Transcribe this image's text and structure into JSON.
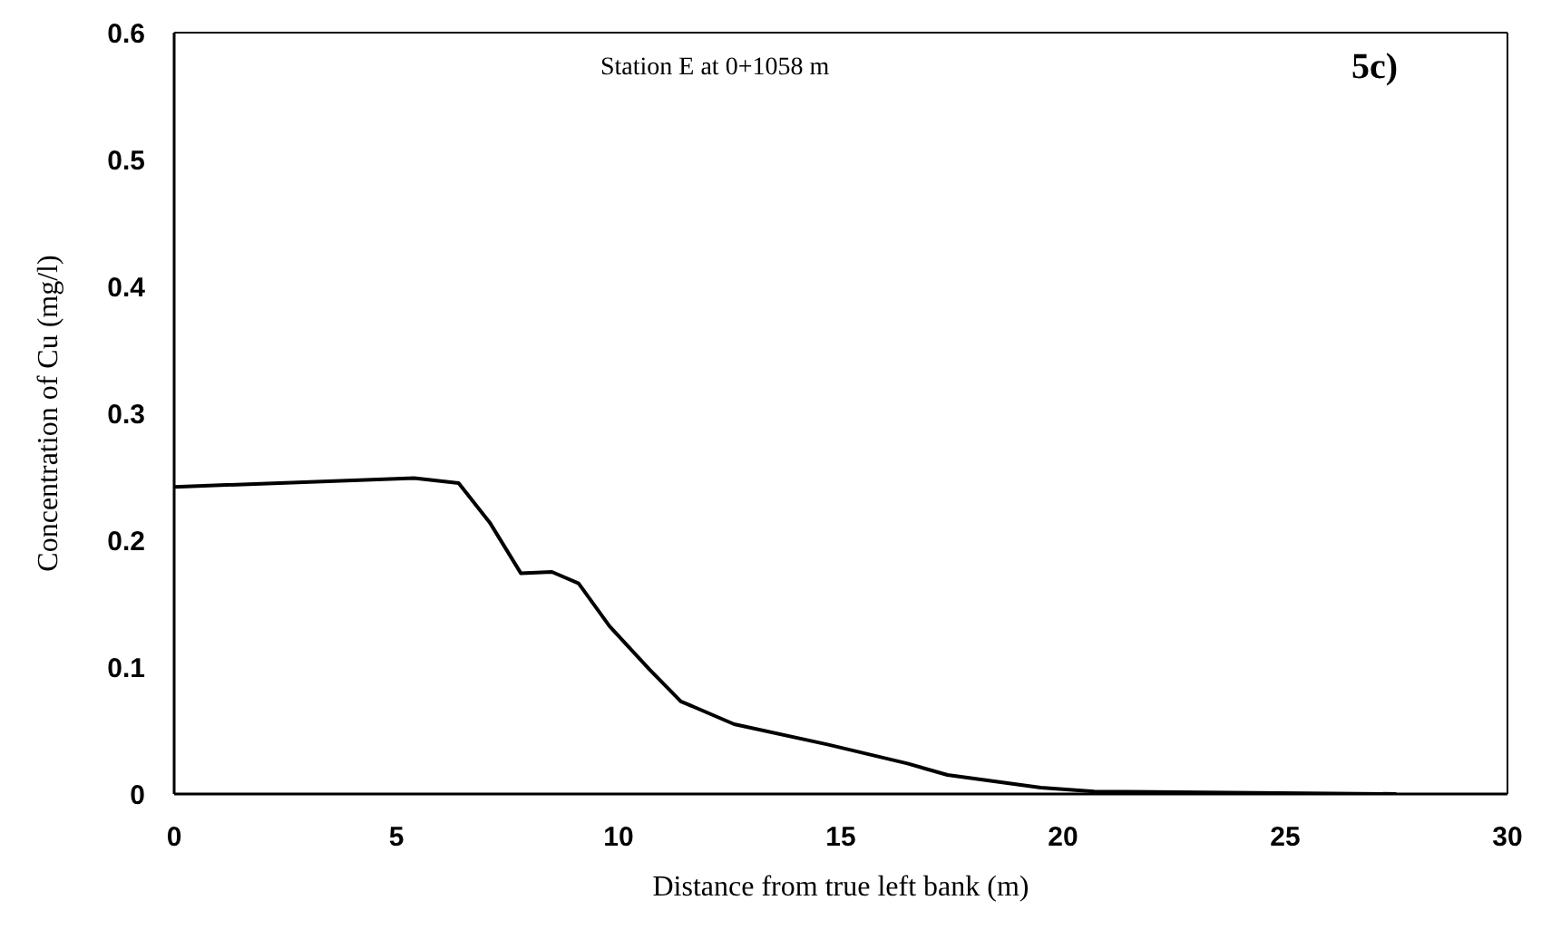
{
  "chart_data": {
    "type": "line",
    "xlabel": "Distance from true left bank (m)",
    "ylabel": "Concentration of Cu (mg/l)",
    "annotations": [
      "Station E at 0+1058 m",
      "5c)"
    ],
    "x": [
      0,
      5.4,
      6.4,
      7.1,
      7.8,
      8.5,
      9.1,
      9.8,
      10.7,
      11.4,
      12.6,
      14.7,
      16.5,
      17.4,
      19.5,
      20.7,
      27.5
    ],
    "series": [
      {
        "color": "#000000",
        "values": [
          0.242,
          0.249,
          0.245,
          0.214,
          0.174,
          0.175,
          0.166,
          0.132,
          0.098,
          0.073,
          0.055,
          0.039,
          0.024,
          0.015,
          0.005,
          0.002,
          0
        ]
      }
    ],
    "xlim": [
      0,
      30
    ],
    "xticks": [
      0,
      5,
      10,
      15,
      20,
      25,
      30
    ],
    "ylim": [
      0,
      0.6
    ],
    "yticks": [
      0,
      0.1,
      0.2,
      0.3,
      0.4,
      0.5,
      0.6
    ],
    "grid": false,
    "marker": "none",
    "line_style": "solid"
  }
}
